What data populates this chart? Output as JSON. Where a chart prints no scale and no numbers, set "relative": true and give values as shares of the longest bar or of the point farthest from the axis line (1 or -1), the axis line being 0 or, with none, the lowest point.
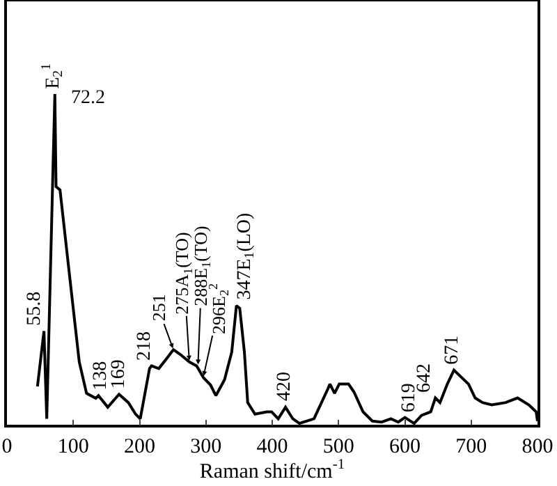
{
  "chart_data": {
    "type": "line",
    "relative": true,
    "xlabel": "Raman shift/cm$^{-1}$",
    "xlim": [
      0,
      800
    ],
    "xticks": [
      0,
      100,
      200,
      300,
      400,
      500,
      600,
      700,
      800
    ],
    "tick_labels": "x",
    "grid": false,
    "series": [
      {
        "color": "#000000",
        "x": [
          46,
          55.8,
          60,
          72.2,
          74,
          80,
          95,
          109,
          120,
          134,
          138,
          152,
          169,
          183,
          194,
          201,
          215,
          218,
          229,
          243,
          251,
          261,
          275,
          286,
          296,
          307,
          315,
          328,
          339,
          346,
          351,
          358,
          363,
          374,
          392,
          399,
          409,
          420,
          431,
          441,
          463,
          484,
          487,
          494,
          501,
          515,
          523,
          537,
          551,
          565,
          579,
          590,
          600,
          614,
          625,
          639,
          646,
          653,
          664,
          674,
          685,
          696,
          706,
          717,
          731,
          752,
          770,
          787,
          798,
          800
        ],
        "values": [
          0.116,
          0.283,
          0.018,
          1,
          0.72,
          0.71,
          0.44,
          0.19,
          0.095,
          0.08,
          0.088,
          0.053,
          0.092,
          0.067,
          0.032,
          0.018,
          0.17,
          0.178,
          0.17,
          0.206,
          0.227,
          0.213,
          0.19,
          0.178,
          0.143,
          0.12,
          0.088,
          0.136,
          0.22,
          0.36,
          0.352,
          0.22,
          0.067,
          0.032,
          0.039,
          0.039,
          0.018,
          0.053,
          0.018,
          0.004,
          0.018,
          0.109,
          0.123,
          0.095,
          0.123,
          0.123,
          0.1,
          0.039,
          0.011,
          0.008,
          0.018,
          0.008,
          0.022,
          0.004,
          0.028,
          0.039,
          0.081,
          0.067,
          0.123,
          0.165,
          0.144,
          0.123,
          0.081,
          0.067,
          0.06,
          0.067,
          0.081,
          0.06,
          0.039,
          0.011
        ]
      }
    ],
    "annotations": [
      {
        "text": "55.8",
        "x": 55.8,
        "y": 0.283
      },
      {
        "text": "E$_{2}$$^{1}$",
        "x": 72.2,
        "y": 1
      },
      {
        "text": "72.2",
        "x": 72.2,
        "y": 1
      },
      {
        "text": "138",
        "x": 138,
        "y": 0.088
      },
      {
        "text": "169",
        "x": 169,
        "y": 0.092
      },
      {
        "text": "218",
        "x": 218,
        "y": 0.178
      },
      {
        "text": "251",
        "x": 251,
        "y": 0.227
      },
      {
        "text": "275A$_{1}$(TO)",
        "x": 275,
        "y": 0.19
      },
      {
        "text": "288E$_{1}$(TO)",
        "x": 288,
        "y": 0.178
      },
      {
        "text": "296E$_{2}$$^{2}$",
        "x": 296,
        "y": 0.143
      },
      {
        "text": "347E$_{1}$(LO)",
        "x": 347,
        "y": 0.36
      },
      {
        "text": "420",
        "x": 420,
        "y": 0.053
      },
      {
        "text": "619",
        "x": 619,
        "y": 0.022
      },
      {
        "text": "642",
        "x": 642,
        "y": 0.081
      },
      {
        "text": "671",
        "x": 671,
        "y": 0.165
      }
    ]
  }
}
